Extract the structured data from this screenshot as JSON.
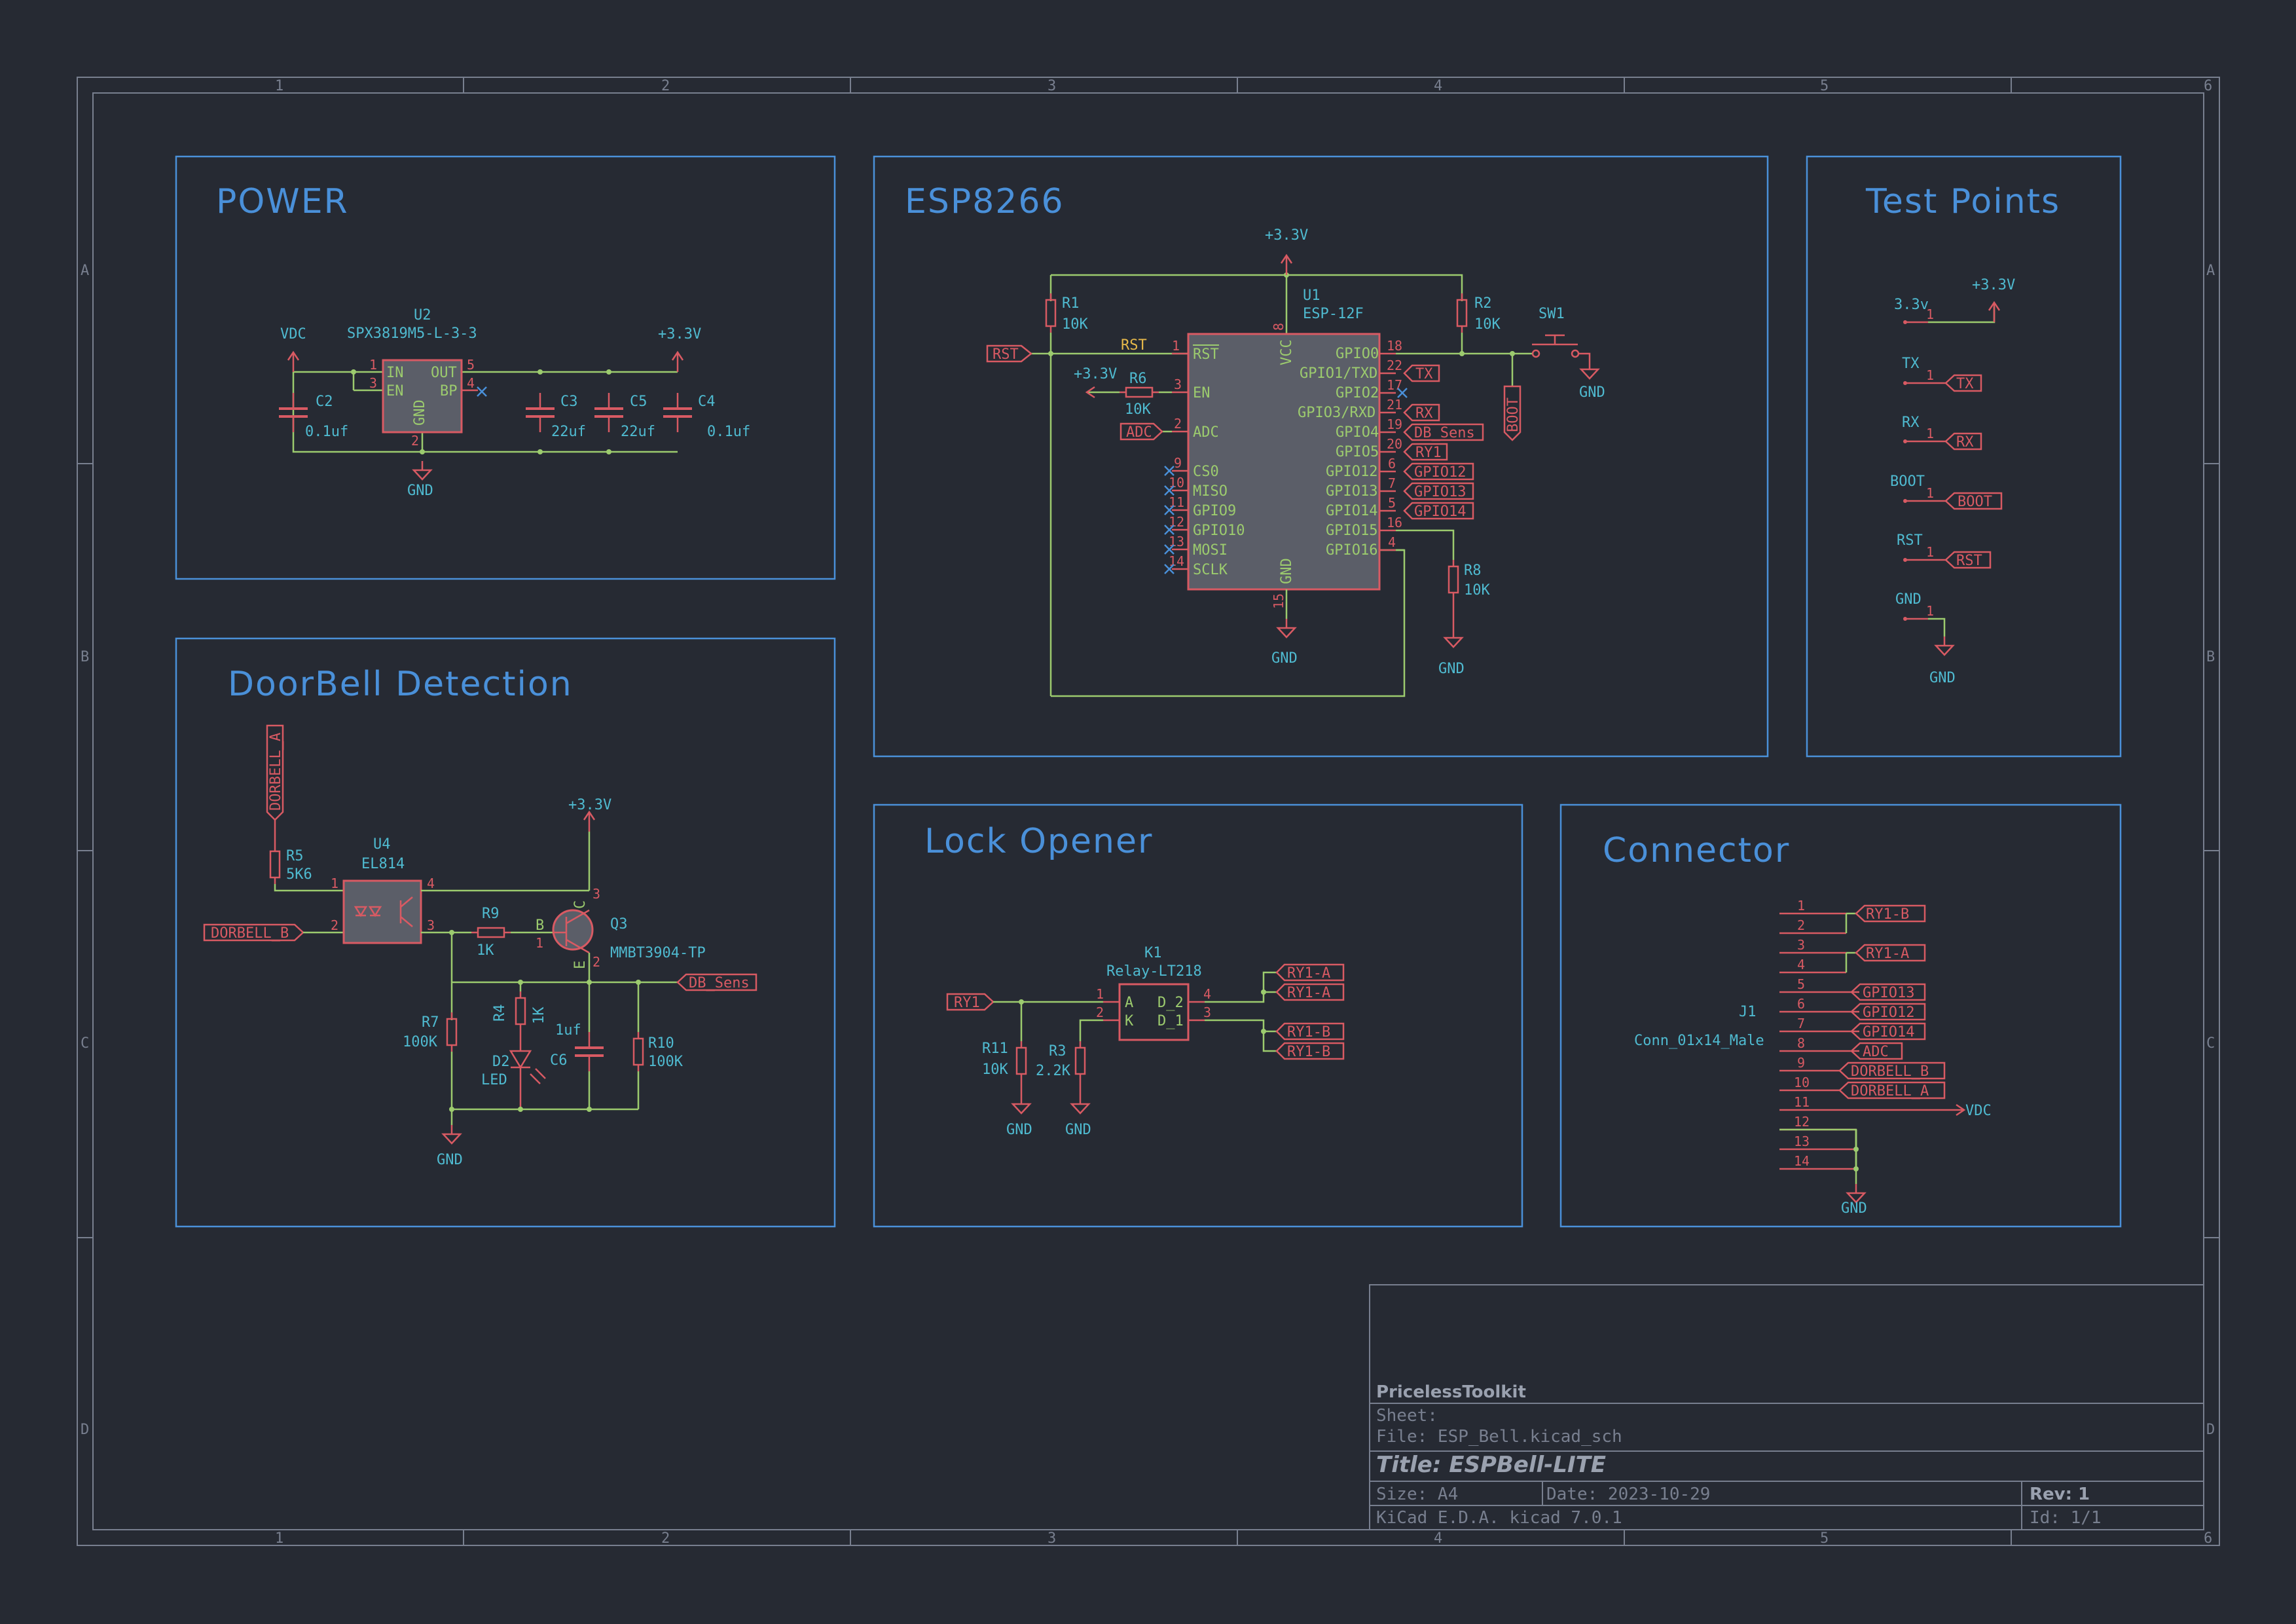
{
  "frame": {
    "col_labels": [
      "1",
      "2",
      "3",
      "4",
      "5",
      "6"
    ],
    "row_labels": [
      "A",
      "B",
      "C",
      "D"
    ]
  },
  "sections": {
    "power": "POWER",
    "esp": "ESP8266",
    "test": "Test Points",
    "doorbell": "DoorBell Detection",
    "lock": "Lock Opener",
    "connector": "Connector"
  },
  "power": {
    "vdc": "VDC",
    "v33": "+3.3V",
    "gnd": "GND",
    "u2_ref": "U2",
    "u2_val": "SPX3819M5-L-3-3",
    "u2_pins": {
      "in": "IN",
      "en": "EN",
      "out": "OUT",
      "bp": "BP",
      "gnd": "GND",
      "p1": "1",
      "p3": "3",
      "p5": "5",
      "p4": "4",
      "p2": "2"
    },
    "c2": "C2",
    "c2v": "0.1uf",
    "c3": "C3",
    "c3v": "22uf",
    "c5": "C5",
    "c5v": "22uf",
    "c4": "C4",
    "c4v": "0.1uf"
  },
  "esp": {
    "v33": "+3.3V",
    "v33b": "+3.3V",
    "gnd": "GND",
    "gnd2": "GND",
    "gnd3": "GND",
    "u1_ref": "U1",
    "u1_val": "ESP-12F",
    "r1": "R1",
    "r1v": "10K",
    "r2": "R2",
    "r2v": "10K",
    "r6": "R6",
    "r6v": "10K",
    "r8": "R8",
    "r8v": "10K",
    "sw1": "SW1",
    "rst_lbl": "RST",
    "rst_net": "RST",
    "adc_lbl": "ADC",
    "boot_lbl": "BOOT",
    "left_pins": [
      {
        "num": "1",
        "name": "RST"
      },
      {
        "num": "3",
        "name": "EN"
      },
      {
        "num": "2",
        "name": "ADC"
      },
      {
        "num": "9",
        "name": "CS0"
      },
      {
        "num": "10",
        "name": "MISO"
      },
      {
        "num": "11",
        "name": "GPIO9"
      },
      {
        "num": "12",
        "name": "GPIO10"
      },
      {
        "num": "13",
        "name": "MOSI"
      },
      {
        "num": "14",
        "name": "SCLK"
      }
    ],
    "right_pins": [
      {
        "num": "18",
        "name": "GPIO0",
        "net": ""
      },
      {
        "num": "22",
        "name": "GPIO1/TXD",
        "net": "TX"
      },
      {
        "num": "17",
        "name": "GPIO2",
        "net": ""
      },
      {
        "num": "21",
        "name": "GPIO3/RXD",
        "net": "RX"
      },
      {
        "num": "19",
        "name": "GPIO4",
        "net": "DB_Sens"
      },
      {
        "num": "20",
        "name": "GPIO5",
        "net": "RY1"
      },
      {
        "num": "6",
        "name": "GPIO12",
        "net": "GPIO12"
      },
      {
        "num": "7",
        "name": "GPIO13",
        "net": "GPIO13"
      },
      {
        "num": "5",
        "name": "GPIO14",
        "net": "GPIO14"
      },
      {
        "num": "16",
        "name": "GPIO15",
        "net": ""
      },
      {
        "num": "4",
        "name": "GPIO16",
        "net": ""
      }
    ],
    "vcc": "VCC",
    "vcc_num": "8",
    "gnd_pin": "GND",
    "gnd_num": "15"
  },
  "test": {
    "items": [
      {
        "ref": "3.3v",
        "net": "+3.3V"
      },
      {
        "ref": "TX",
        "net": "TX"
      },
      {
        "ref": "RX",
        "net": "RX"
      },
      {
        "ref": "BOOT",
        "net": "BOOT"
      },
      {
        "ref": "RST",
        "net": "RST"
      },
      {
        "ref": "GND",
        "net": "GND"
      }
    ],
    "pin1": "1"
  },
  "doorbell": {
    "dorbell_a": "DORBELL_A",
    "dorbell_b": "DORBELL_B",
    "r5": "R5",
    "r5v": "5K6",
    "u4": "U4",
    "u4v": "EL814",
    "r9": "R9",
    "r9v": "1K",
    "q3": "Q3",
    "q3v": "MMBT3904-TP",
    "v33": "+3.3V",
    "db_sens": "DB_Sens",
    "r7": "R7",
    "r7v": "100K",
    "r4": "R4",
    "r4v": "1K",
    "d2": "D2",
    "d2v": "LED",
    "c6": "C6",
    "c6v": "1uf",
    "r10": "R10",
    "r10v": "100K",
    "gnd": "GND",
    "pins": {
      "p1": "1",
      "p2": "2",
      "p3": "3",
      "p4": "4",
      "b": "B",
      "c": "C",
      "e": "E",
      "q1": "1",
      "q2": "2",
      "q3": "3"
    }
  },
  "lock": {
    "ry1": "RY1",
    "k1": "K1",
    "k1v": "Relay-LT218",
    "r11": "R11",
    "r11v": "10K",
    "r3": "R3",
    "r3v": "2.2K",
    "gnd": "GND",
    "pins": {
      "a": "A",
      "k": "K",
      "d2": "D_2",
      "d1": "D_1",
      "p1": "1",
      "p2": "2",
      "p3": "3",
      "p4": "4"
    },
    "outs": [
      "RY1-A",
      "RY1-A",
      "RY1-B",
      "RY1-B"
    ]
  },
  "connector": {
    "j1": "J1",
    "j1v": "Conn_01x14_Male",
    "pins": [
      "1",
      "2",
      "3",
      "4",
      "5",
      "6",
      "7",
      "8",
      "9",
      "10",
      "11",
      "12",
      "13",
      "14"
    ],
    "nets": [
      "RY1-B",
      "RY1-A",
      "GPIO13",
      "GPIO12",
      "GPIO14",
      "ADC",
      "DORBELL_B",
      "DORBELL_A"
    ],
    "vdc": "VDC",
    "gnd": "GND"
  },
  "titleblock": {
    "company": "PricelessToolkit",
    "sheet": "Sheet:",
    "file": "File: ESP_Bell.kicad_sch",
    "title": "Title: ESPBell-LITE",
    "size": "Size: A4",
    "date": "Date: 2023-10-29",
    "rev": "Rev: 1",
    "tool": "KiCad E.D.A.  kicad 7.0.1",
    "id": "Id: 1/1"
  }
}
